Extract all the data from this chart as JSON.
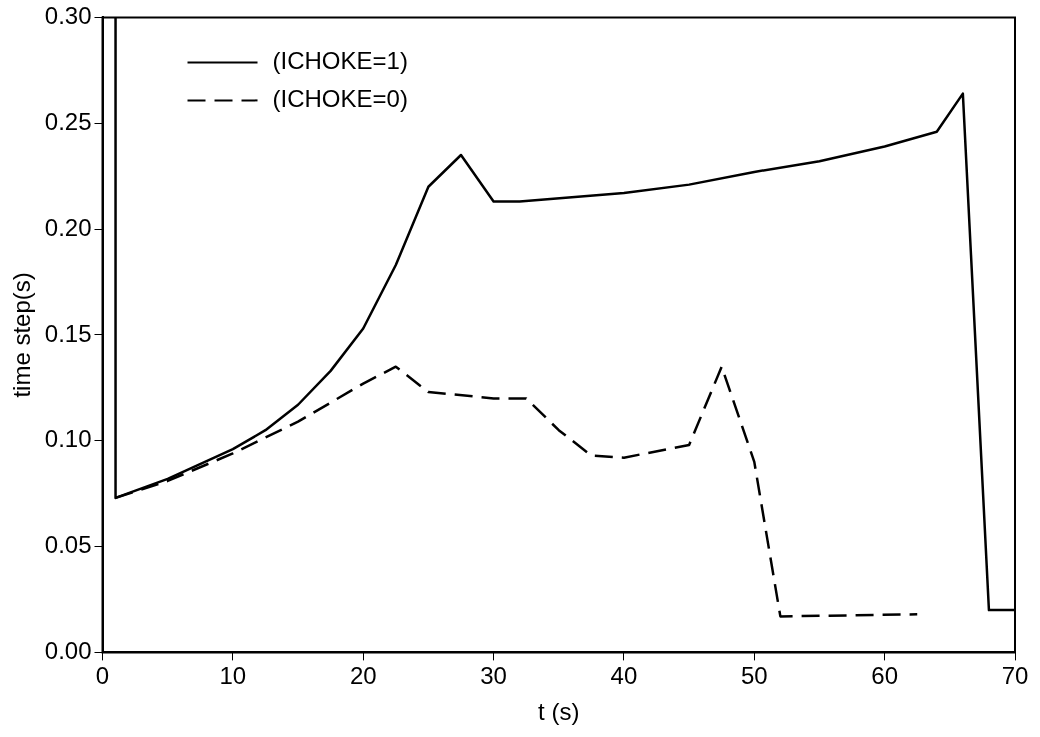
{
  "chart_data": {
    "type": "line",
    "xlabel": "t (s)",
    "ylabel": "time step(s)",
    "xlim": [
      0,
      70
    ],
    "xticks": [
      0,
      10,
      20,
      30,
      40,
      50,
      60,
      70
    ],
    "ylim": [
      0,
      0.3
    ],
    "yticks": [
      {
        "value": 0,
        "label": "0.00"
      },
      {
        "value": 0.05,
        "label": "0.05"
      },
      {
        "value": 0.1,
        "label": "0.10"
      },
      {
        "value": 0.15,
        "label": "0.15"
      },
      {
        "value": 0.2,
        "label": "0.20"
      },
      {
        "value": 0.25,
        "label": "0.25"
      },
      {
        "value": 0.3,
        "label": "0.30"
      }
    ],
    "grid": false,
    "legend": "top left",
    "marker": "none",
    "series": [
      {
        "name": "(ICHOKE=1)",
        "color": "#000000",
        "line_style": "solid",
        "x": [
          1,
          1,
          5,
          10,
          12.5,
          15,
          17.5,
          20,
          22.5,
          25,
          27.5,
          30,
          32,
          40,
          45,
          50,
          55,
          60,
          64,
          66,
          68,
          70
        ],
        "values": [
          0.3,
          0.073,
          0.082,
          0.096,
          0.105,
          0.117,
          0.133,
          0.153,
          0.183,
          0.22,
          0.235,
          0.213,
          0.213,
          0.217,
          0.221,
          0.227,
          0.232,
          0.239,
          0.246,
          0.264,
          0.02,
          0.02
        ]
      },
      {
        "name": "(ICHOKE=0)",
        "color": "#000000",
        "line_style": "dashed",
        "x": [
          1,
          5,
          10,
          15,
          20,
          22.5,
          25,
          30,
          32.5,
          35,
          37.5,
          40,
          45,
          47.5,
          50,
          52,
          62.5
        ],
        "values": [
          0.073,
          0.081,
          0.094,
          0.109,
          0.127,
          0.135,
          0.123,
          0.12,
          0.12,
          0.105,
          0.093,
          0.092,
          0.098,
          0.135,
          0.09,
          0.017,
          0.018
        ]
      }
    ]
  }
}
